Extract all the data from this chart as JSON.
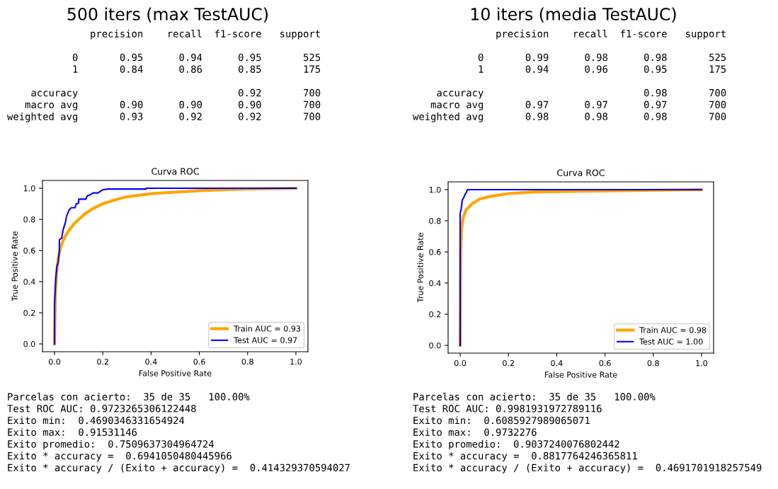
{
  "chart_data": [
    {
      "type": "line",
      "title": "Curva ROC",
      "xlabel": "False Positive Rate",
      "ylabel": "True Positive Rate",
      "xlim": [
        -0.05,
        1.05
      ],
      "ylim": [
        -0.05,
        1.05
      ],
      "xticks": [
        {
          "value": 0,
          "label": "0.0"
        },
        {
          "value": 0.2,
          "label": "0.2"
        },
        {
          "value": 0.4,
          "label": "0.4"
        },
        {
          "value": 0.6,
          "label": "0.6"
        },
        {
          "value": 0.8,
          "label": "0.8"
        },
        {
          "value": 1,
          "label": "1.0"
        }
      ],
      "yticks": [
        {
          "value": 0,
          "label": "0.0"
        },
        {
          "value": 0.2,
          "label": "0.2"
        },
        {
          "value": 0.4,
          "label": "0.4"
        },
        {
          "value": 0.6,
          "label": "0.6"
        },
        {
          "value": 0.8,
          "label": "0.8"
        },
        {
          "value": 1,
          "label": "1.0"
        }
      ],
      "grid": false,
      "legend": "bottom right",
      "series": [
        {
          "name": "Train AUC = 0.93",
          "color": "#ffa500",
          "x": [
            0,
            0.003,
            0.008,
            0.015,
            0.025,
            0.04,
            0.06,
            0.08,
            0.1,
            0.13,
            0.16,
            0.2,
            0.25,
            0.3,
            0.4,
            0.5,
            0.6,
            0.7,
            0.8,
            1
          ],
          "values": [
            0,
            0.3,
            0.45,
            0.55,
            0.62,
            0.68,
            0.73,
            0.77,
            0.8,
            0.84,
            0.87,
            0.9,
            0.925,
            0.945,
            0.965,
            0.975,
            0.985,
            0.99,
            0.995,
            1
          ]
        },
        {
          "name": "Test AUC = 0.97",
          "color": "#0000ff",
          "x": [
            0,
            0,
            0.005,
            0.01,
            0.015,
            0.02,
            0.02,
            0.03,
            0.035,
            0.045,
            0.05,
            0.06,
            0.07,
            0.085,
            0.09,
            0.1,
            0.1,
            0.13,
            0.135,
            0.15,
            0.16,
            0.18,
            0.2,
            0.22,
            0.38,
            0.38,
            1
          ],
          "values": [
            0,
            0.25,
            0.42,
            0.5,
            0.52,
            0.6,
            0.67,
            0.68,
            0.73,
            0.78,
            0.82,
            0.86,
            0.875,
            0.875,
            0.9,
            0.905,
            0.93,
            0.93,
            0.95,
            0.96,
            0.97,
            0.97,
            0.99,
            0.995,
            0.995,
            1,
            1
          ]
        }
      ],
      "annotations": [
        "500 iters (max TestAUC)",
        "              precision    recall  f1-score   support\n\n           0       0.95      0.94      0.95       525\n           1       0.84      0.86      0.85       175\n\n    accuracy                           0.92       700\n   macro avg       0.90      0.90      0.90       700\nweighted avg       0.93      0.92      0.92       700",
        "Parcelas con acierto:  35 de 35   100.00%\nTest ROC AUC: 0.9723265306122448\nExito min:  0.4690346331654924\nExito max:  0.91531146\nExito promedio:  0.7509637304964724\nExito * accuracy =  0.6941050480445966\nExito * accuracy / (Exito + accuracy) =  0.414329370594027"
      ]
    },
    {
      "type": "line",
      "title": "Curva ROC",
      "xlabel": "False Positive Rate",
      "ylabel": "True Positive Rate",
      "xlim": [
        -0.05,
        1.05
      ],
      "ylim": [
        -0.05,
        1.05
      ],
      "xticks": [
        {
          "value": 0,
          "label": "0.0"
        },
        {
          "value": 0.2,
          "label": "0.2"
        },
        {
          "value": 0.4,
          "label": "0.4"
        },
        {
          "value": 0.6,
          "label": "0.6"
        },
        {
          "value": 0.8,
          "label": "0.8"
        },
        {
          "value": 1,
          "label": "1.0"
        }
      ],
      "yticks": [
        {
          "value": 0,
          "label": "0.0"
        },
        {
          "value": 0.2,
          "label": "0.2"
        },
        {
          "value": 0.4,
          "label": "0.4"
        },
        {
          "value": 0.6,
          "label": "0.6"
        },
        {
          "value": 0.8,
          "label": "0.8"
        },
        {
          "value": 1,
          "label": "1.0"
        }
      ],
      "grid": false,
      "legend": "bottom right",
      "series": [
        {
          "name": "Train AUC = 0.98",
          "color": "#ffa500",
          "x": [
            0,
            0.002,
            0.006,
            0.012,
            0.025,
            0.05,
            0.08,
            0.12,
            0.2,
            0.3,
            0.5,
            1
          ],
          "values": [
            0,
            0.6,
            0.75,
            0.82,
            0.87,
            0.91,
            0.94,
            0.955,
            0.975,
            0.985,
            0.99,
            1
          ]
        },
        {
          "name": "Test AUC = 1.00",
          "color": "#0000ff",
          "x": [
            0,
            0,
            0.005,
            0.008,
            0.015,
            0.02,
            0.025,
            0.03,
            1
          ],
          "values": [
            0,
            0.85,
            0.88,
            0.93,
            0.95,
            0.97,
            0.98,
            1,
            1
          ]
        }
      ],
      "annotations": [
        "10 iters (media TestAUC)",
        "              precision    recall  f1-score   support\n\n           0       0.99      0.98      0.98       525\n           1       0.94      0.96      0.95       175\n\n    accuracy                           0.98       700\n   macro avg       0.97      0.97      0.97       700\nweighted avg       0.98      0.98      0.98       700",
        "Parcelas con acierto:  35 de 35   100.00%\nTest ROC AUC: 0.9981931972789116\nExito min:  0.6085927989065071\nExito max:  0.9732276\nExito promedio:  0.9037240076802442\nExito * accuracy =  0.8817764246365811\nExito * accuracy / (Exito + accuracy) =  0.4691701918257549"
      ]
    }
  ]
}
